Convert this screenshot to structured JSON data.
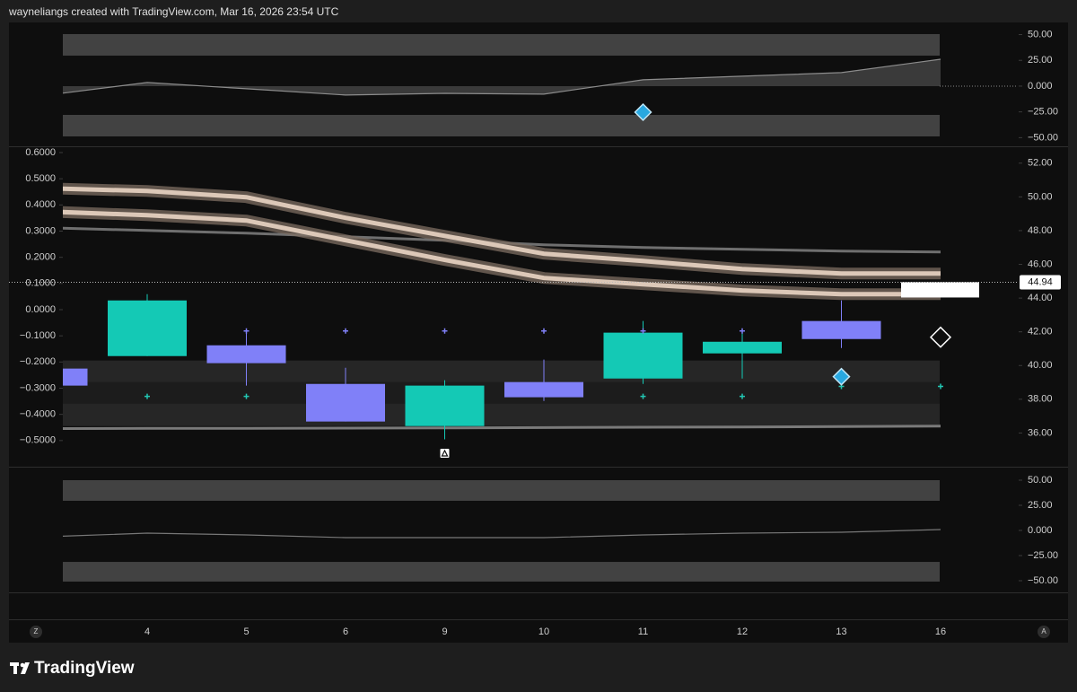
{
  "header": {
    "credit": "wayneliangs created with TradingView.com, Mar 16, 2026 23:54 UTC"
  },
  "footer": {
    "brand": "TradingView"
  },
  "time_axis": {
    "left_button": "Z",
    "right_button": "A"
  },
  "chart_data": [
    {
      "type": "area",
      "values": [
        -8.7,
        3.5,
        -2.6,
        -8.7,
        -7.0,
        -7.8,
        6.1,
        9.6,
        13.1,
        26.1
      ],
      "color": "#8c8c8c",
      "ylim": [
        -58.4,
        61.8
      ],
      "yticks": [
        {
          "value": 50,
          "label": "50.00"
        },
        {
          "value": 25,
          "label": "25.00"
        },
        {
          "value": 0,
          "label": "0.000"
        },
        {
          "value": -25,
          "label": "−25.00"
        },
        {
          "value": -50,
          "label": "−50.00"
        }
      ],
      "zones": [
        [
          29.6,
          50.5
        ],
        [
          -48.8,
          -27.9
        ]
      ],
      "markers": [
        {
          "shape": "diamond",
          "color": "#29a8e0",
          "values": [
            null,
            null,
            null,
            null,
            null,
            null,
            -25.3,
            null,
            null,
            null
          ]
        }
      ]
    },
    {
      "type": "candlestick",
      "categories": [
        null,
        "4",
        "5",
        "6",
        "9",
        "10",
        "11",
        "12",
        "13",
        "16"
      ],
      "open": [
        39.82,
        40.56,
        41.2,
        38.91,
        36.41,
        39.02,
        39.23,
        40.72,
        42.64,
        null
      ],
      "high": [
        39.82,
        44.23,
        42.11,
        39.87,
        39.13,
        40.35,
        42.64,
        42.16,
        43.86,
        null
      ],
      "low": [
        38.81,
        40.56,
        38.81,
        36.68,
        35.62,
        37.9,
        38.91,
        39.23,
        41.04,
        null
      ],
      "close": [
        38.81,
        43.86,
        40.14,
        36.68,
        38.81,
        38.12,
        41.95,
        41.41,
        41.57,
        null
      ],
      "up_color": "#14c9b5",
      "down_color": "#8080f8",
      "ylim": [
        34,
        53
      ],
      "yticks": [
        {
          "value": 52,
          "label": "52.00"
        },
        {
          "value": 50,
          "label": "50.00"
        },
        {
          "value": 48,
          "label": "48.00"
        },
        {
          "value": 46,
          "label": "46.00"
        },
        {
          "value": 44,
          "label": "44.00"
        },
        {
          "value": 42,
          "label": "42.00"
        },
        {
          "value": 40,
          "label": "40.00"
        },
        {
          "value": 38,
          "label": "38.00"
        },
        {
          "value": 36,
          "label": "36.00"
        }
      ],
      "y2lim": [
        -0.6,
        0.624
      ],
      "y2ticks": [
        {
          "value": 0.6,
          "label": "0.6000"
        },
        {
          "value": 0.5,
          "label": "0.5000"
        },
        {
          "value": 0.4,
          "label": "0.4000"
        },
        {
          "value": 0.3,
          "label": "0.3000"
        },
        {
          "value": 0.2,
          "label": "0.2000"
        },
        {
          "value": 0.1,
          "label": "0.1000"
        },
        {
          "value": 0,
          "label": "0.0000"
        },
        {
          "value": -0.1,
          "label": "−0.1000"
        },
        {
          "value": -0.2,
          "label": "−0.2000"
        },
        {
          "value": -0.3,
          "label": "−0.3000"
        },
        {
          "value": -0.4,
          "label": "−0.4000"
        },
        {
          "value": -0.5,
          "label": "−0.5000"
        }
      ],
      "last_price": 44.94,
      "zones": [
        [
          39.02,
          40.3
        ],
        [
          37.74,
          39.02
        ],
        [
          36.41,
          37.74
        ]
      ],
      "lines": [
        {
          "style": "line",
          "color": "#6f6f6f",
          "values": [
            48.17,
            48.01,
            47.85,
            47.64,
            47.43,
            47.16,
            47.0,
            46.89,
            46.79,
            46.73
          ]
        },
        {
          "style": "line",
          "color": "#7a7a7a",
          "values": [
            36.26,
            36.27,
            36.28,
            36.29,
            36.3,
            36.32,
            36.34,
            36.36,
            36.38,
            36.41
          ]
        },
        {
          "style": "band",
          "color": "#dcc8b8",
          "values": [
            50.51,
            50.35,
            49.98,
            48.76,
            47.69,
            46.63,
            46.2,
            45.72,
            45.46,
            45.46
          ]
        },
        {
          "style": "band",
          "color": "#dcc8b8",
          "values": [
            49.13,
            48.91,
            48.6,
            47.43,
            46.26,
            45.19,
            44.82,
            44.45,
            44.23,
            44.23
          ]
        }
      ],
      "markers": [
        {
          "shape": "plus",
          "color": "#8080f8",
          "values": [
            null,
            null,
            42.05,
            42.05,
            42.05,
            42.05,
            42.05,
            42.05,
            null,
            42.05
          ]
        },
        {
          "shape": "plus",
          "color": "#22c7b3",
          "values": [
            null,
            38.17,
            38.17,
            null,
            null,
            null,
            38.17,
            38.17,
            38.76,
            38.76
          ]
        },
        {
          "shape": "diamond",
          "color": "#29a8e0",
          "values": [
            null,
            null,
            null,
            null,
            null,
            null,
            null,
            null,
            39.34,
            null
          ]
        },
        {
          "shape": "diamond-outline",
          "color": "#ffffff",
          "values": [
            null,
            null,
            null,
            null,
            null,
            null,
            null,
            null,
            null,
            41.68
          ]
        }
      ]
    },
    {
      "type": "line",
      "values": [
        -6.2,
        -2.7,
        -4.5,
        -7.1,
        -7.1,
        -7.1,
        -4.5,
        -2.7,
        -1.8,
        0.9
      ],
      "color": "#777777",
      "ylim": [
        -61.6,
        63.4
      ],
      "yticks": [
        {
          "value": 50,
          "label": "50.00"
        },
        {
          "value": 25,
          "label": "25.00"
        },
        {
          "value": 0,
          "label": "0.000"
        },
        {
          "value": -25,
          "label": "−25.00"
        },
        {
          "value": -50,
          "label": "−50.00"
        }
      ],
      "zones": [
        [
          29.5,
          50.0
        ],
        [
          -50.9,
          -31.3
        ]
      ]
    }
  ]
}
